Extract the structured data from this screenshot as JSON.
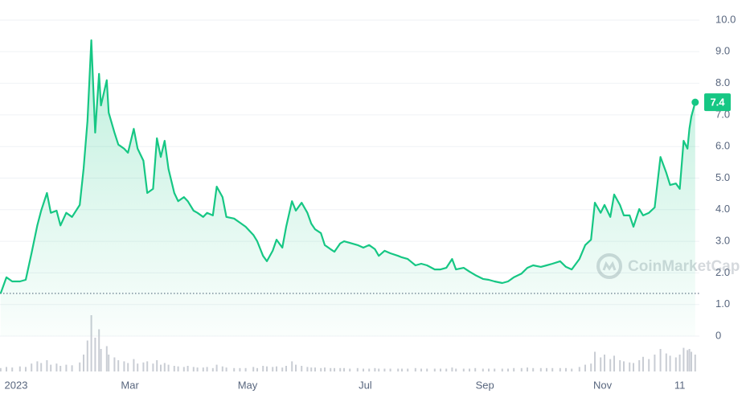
{
  "chart_data": {
    "type": "line",
    "watermark": "CoinMarketCap",
    "x": [
      -8,
      -5,
      -2,
      2,
      5,
      8,
      11,
      13,
      16,
      18,
      21,
      23,
      26,
      29,
      33,
      35,
      37,
      39,
      41,
      43,
      44,
      47,
      48,
      51,
      53,
      56,
      58,
      61,
      63,
      66,
      68,
      71,
      73,
      75,
      77,
      79,
      82,
      84,
      87,
      89,
      92,
      94,
      97,
      99,
      102,
      104,
      107,
      109,
      113,
      116,
      119,
      123,
      125,
      128,
      130,
      133,
      135,
      138,
      140,
      143,
      145,
      148,
      151,
      153,
      155,
      158,
      160,
      163,
      165,
      168,
      170,
      173,
      177,
      180,
      183,
      186,
      188,
      191,
      194,
      198,
      200,
      203,
      207,
      210,
      213,
      217,
      220,
      223,
      226,
      228,
      232,
      235,
      238,
      242,
      245,
      248,
      252,
      255,
      258,
      262,
      265,
      268,
      272,
      275,
      278,
      282,
      285,
      288,
      292,
      295,
      298,
      300,
      303,
      305,
      308,
      310,
      313,
      315,
      318,
      320,
      323,
      325,
      328,
      331,
      334,
      337,
      339,
      342,
      344,
      346,
      348,
      349,
      350,
      352
    ],
    "series": [
      {
        "color": "#16c784",
        "values": [
          1.35,
          1.86,
          1.73,
          1.73,
          1.78,
          2.62,
          3.5,
          3.97,
          4.53,
          3.9,
          3.97,
          3.5,
          3.9,
          3.77,
          4.15,
          5.3,
          6.8,
          9.36,
          6.44,
          8.3,
          7.3,
          8.1,
          7.07,
          6.44,
          6.06,
          5.93,
          5.8,
          6.56,
          5.93,
          5.55,
          4.53,
          4.66,
          6.26,
          5.67,
          6.18,
          5.29,
          4.53,
          4.27,
          4.4,
          4.27,
          3.97,
          3.9,
          3.77,
          3.9,
          3.82,
          4.73,
          4.4,
          3.77,
          3.72,
          3.59,
          3.46,
          3.2,
          3.0,
          2.54,
          2.37,
          2.7,
          3.05,
          2.8,
          3.46,
          4.27,
          3.97,
          4.22,
          3.9,
          3.56,
          3.38,
          3.26,
          2.88,
          2.75,
          2.67,
          2.93,
          3.0,
          2.95,
          2.88,
          2.8,
          2.88,
          2.75,
          2.54,
          2.7,
          2.62,
          2.54,
          2.49,
          2.44,
          2.24,
          2.29,
          2.24,
          2.11,
          2.11,
          2.16,
          2.44,
          2.11,
          2.16,
          2.04,
          1.93,
          1.81,
          1.78,
          1.73,
          1.68,
          1.73,
          1.86,
          1.98,
          2.16,
          2.24,
          2.19,
          2.24,
          2.29,
          2.37,
          2.19,
          2.11,
          2.44,
          2.88,
          3.05,
          4.22,
          3.9,
          4.15,
          3.77,
          4.48,
          4.15,
          3.82,
          3.82,
          3.46,
          4.02,
          3.82,
          3.9,
          4.07,
          5.67,
          5.17,
          4.78,
          4.83,
          4.66,
          6.18,
          5.93,
          6.56,
          6.95,
          7.4
        ]
      }
    ],
    "volume": {
      "color": "#c9cdd4",
      "ylim": [
        0,
        100
      ],
      "values": [
        6,
        8,
        7,
        9,
        8,
        14,
        18,
        15,
        20,
        12,
        14,
        10,
        12,
        11,
        16,
        30,
        55,
        100,
        60,
        75,
        40,
        45,
        30,
        25,
        20,
        18,
        15,
        22,
        14,
        16,
        18,
        14,
        20,
        12,
        15,
        12,
        10,
        9,
        8,
        10,
        8,
        7,
        7,
        8,
        6,
        12,
        9,
        7,
        6,
        6,
        6,
        8,
        6,
        10,
        9,
        8,
        9,
        7,
        10,
        18,
        12,
        10,
        8,
        7,
        7,
        6,
        7,
        6,
        6,
        6,
        6,
        5,
        6,
        5,
        5,
        6,
        5,
        5,
        5,
        5,
        5,
        5,
        6,
        5,
        5,
        5,
        5,
        5,
        7,
        5,
        5,
        5,
        6,
        5,
        5,
        5,
        5,
        5,
        6,
        6,
        7,
        6,
        6,
        6,
        6,
        6,
        6,
        5,
        8,
        12,
        14,
        35,
        25,
        30,
        22,
        28,
        20,
        18,
        16,
        15,
        20,
        26,
        22,
        30,
        40,
        32,
        28,
        25,
        30,
        42,
        38,
        40,
        35,
        30
      ]
    },
    "xlim": [
      -8,
      352
    ],
    "xticks": [
      {
        "value": 0,
        "label": "2023"
      },
      {
        "value": 59,
        "label": "Mar"
      },
      {
        "value": 120,
        "label": "May"
      },
      {
        "value": 181,
        "label": "Jul"
      },
      {
        "value": 243,
        "label": "Sep"
      },
      {
        "value": 304,
        "label": "Nov"
      },
      {
        "value": 344,
        "label": "11"
      }
    ],
    "ylim": [
      0,
      10.6
    ],
    "yticks": [
      0,
      {
        "value": 1,
        "label": "1.0"
      },
      {
        "value": 2,
        "label": "2.0"
      },
      {
        "value": 3,
        "label": "3.0"
      },
      {
        "value": 4,
        "label": "4.0"
      },
      {
        "value": 5,
        "label": "5.0"
      },
      {
        "value": 6,
        "label": "6.0"
      },
      {
        "value": 7,
        "label": "7.0"
      },
      {
        "value": 8,
        "label": "8.0"
      },
      {
        "value": 9,
        "label": "9.0"
      },
      {
        "value": 10,
        "label": "10.0"
      }
    ],
    "grid": true
  }
}
